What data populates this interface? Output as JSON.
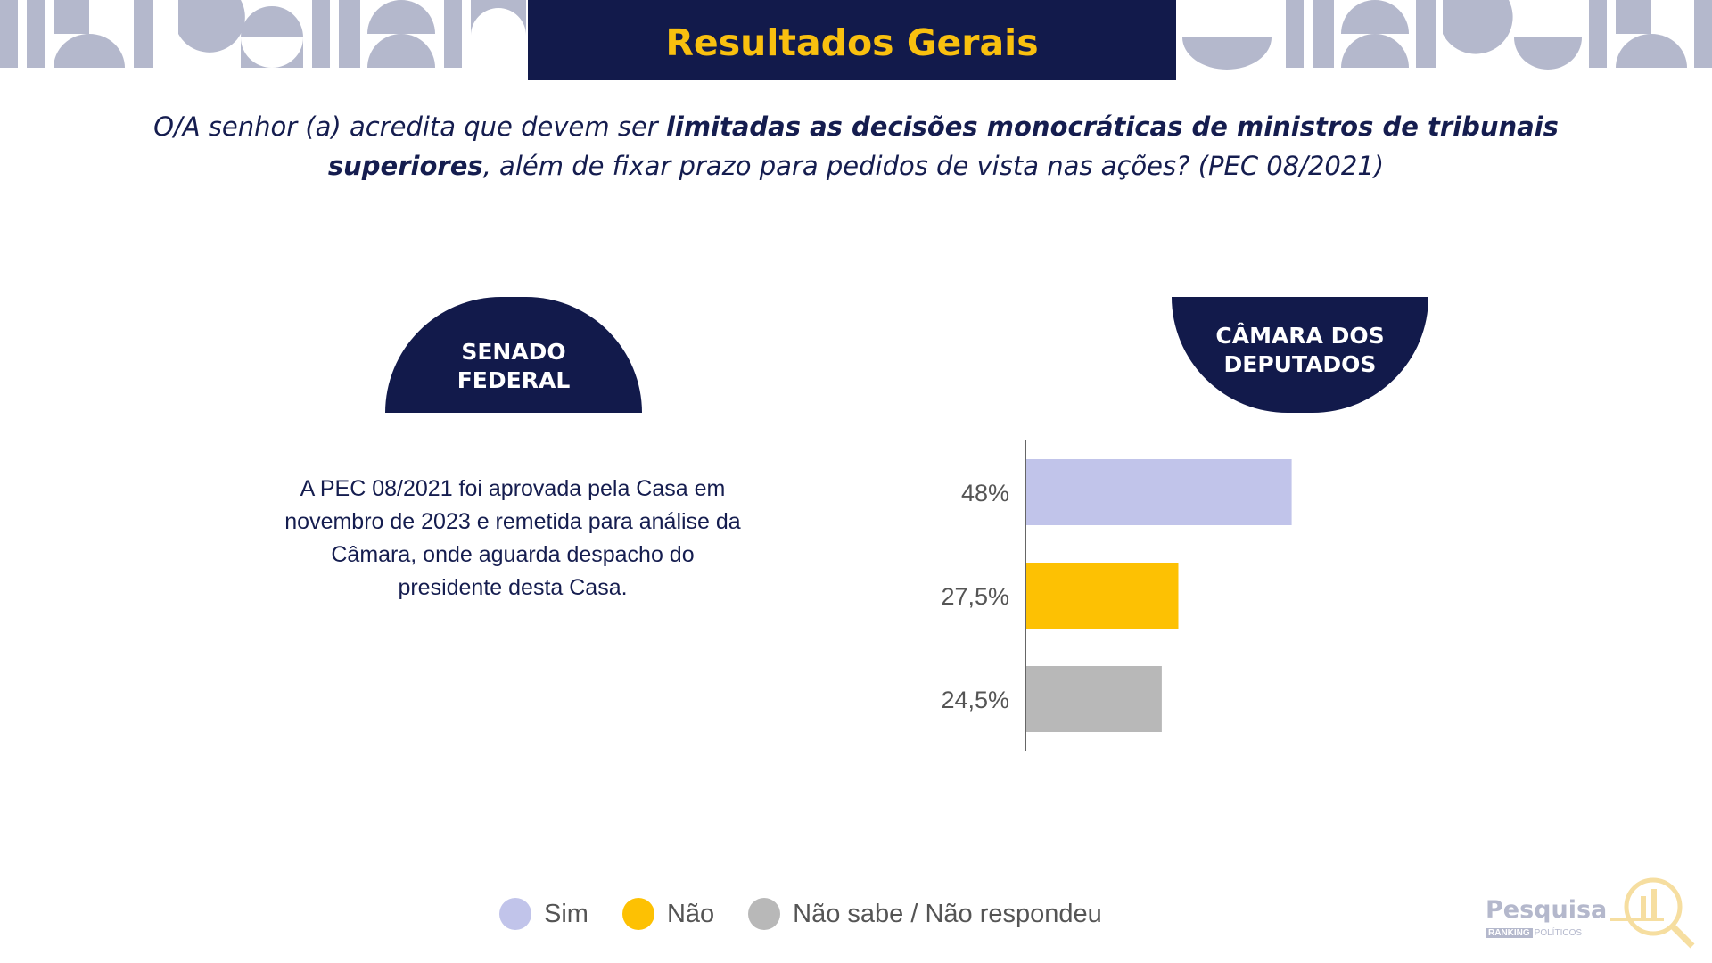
{
  "header": {
    "title": "Resultados Gerais"
  },
  "question": {
    "part1": "O/A senhor (a) acredita que devem ser ",
    "bold": "limitadas as decisões monocráticas de ministros de tribunais superiores",
    "part2": ", além de fixar prazo para pedidos de vista nas ações? (PEC 08/2021)"
  },
  "senado": {
    "badge": "SENADO\nFEDERAL",
    "note": "A PEC 08/2021 foi aprovada pela Casa em novembro de 2023 e remetida para análise da Câmara, onde aguarda despacho do presidente desta Casa."
  },
  "camara": {
    "badge": "CÂMARA DOS\nDEPUTADOS"
  },
  "chart_data": {
    "type": "bar",
    "orientation": "horizontal",
    "categories": [
      "Sim",
      "Não",
      "Não sabe / Não respondeu"
    ],
    "values": [
      48,
      27.5,
      24.5
    ],
    "value_labels": [
      "48%",
      "27,5%",
      "24,5%"
    ],
    "colors": [
      "#c1c4ea",
      "#fdc103",
      "#b8b8b8"
    ],
    "xlim": [
      0,
      100
    ],
    "grid": false,
    "legend_position": "bottom"
  },
  "legend": {
    "items": [
      {
        "label": "Sim",
        "color": "#c1c4ea"
      },
      {
        "label": "Não",
        "color": "#fdc103"
      },
      {
        "label": "Não sabe / Não respondeu",
        "color": "#b8b8b8"
      }
    ]
  },
  "logo": {
    "title": "Pesquisa",
    "tag": "RANKING",
    "sub": "POLÍTICOS"
  },
  "colors": {
    "navy": "#121a4b",
    "yellow": "#f9c00f",
    "pattern": "#b4b8cc"
  }
}
